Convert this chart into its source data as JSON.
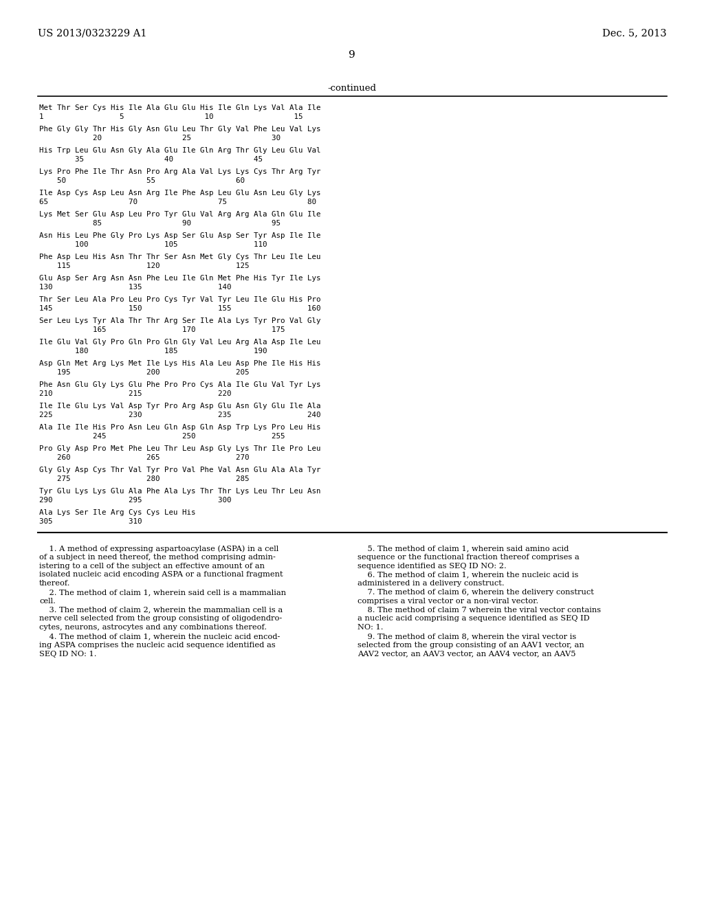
{
  "header_left": "US 2013/0323229 A1",
  "header_right": "Dec. 5, 2013",
  "page_number": "9",
  "continued_label": "-continued",
  "background_color": "#ffffff",
  "text_color": "#000000",
  "sequence_lines_exact": [
    "Met Thr Ser Cys His Ile Ala Glu Glu His Ile Gln Lys Val Ala Ile",
    "1                 5                  10                  15",
    "",
    "Phe Gly Gly Thr His Gly Asn Glu Leu Thr Gly Val Phe Leu Val Lys",
    "            20                  25                  30",
    "",
    "His Trp Leu Glu Asn Gly Ala Glu Ile Gln Arg Thr Gly Leu Glu Val",
    "        35                  40                  45",
    "",
    "Lys Pro Phe Ile Thr Asn Pro Arg Ala Val Lys Lys Cys Thr Arg Tyr",
    "    50                  55                  60",
    "",
    "Ile Asp Cys Asp Leu Asn Arg Ile Phe Asp Leu Glu Asn Leu Gly Lys",
    "65                  70                  75                  80",
    "",
    "Lys Met Ser Glu Asp Leu Pro Tyr Glu Val Arg Arg Ala Gln Glu Ile",
    "            85                  90                  95",
    "",
    "Asn His Leu Phe Gly Pro Lys Asp Ser Glu Asp Ser Tyr Asp Ile Ile",
    "        100                 105                 110",
    "",
    "Phe Asp Leu His Asn Thr Thr Ser Asn Met Gly Cys Thr Leu Ile Leu",
    "    115                 120                 125",
    "",
    "Glu Asp Ser Arg Asn Asn Phe Leu Ile Gln Met Phe His Tyr Ile Lys",
    "130                 135                 140",
    "",
    "Thr Ser Leu Ala Pro Leu Pro Cys Tyr Val Tyr Leu Ile Glu His Pro",
    "145                 150                 155                 160",
    "",
    "Ser Leu Lys Tyr Ala Thr Thr Arg Ser Ile Ala Lys Tyr Pro Val Gly",
    "            165                 170                 175",
    "",
    "Ile Glu Val Gly Pro Gln Pro Gln Gly Val Leu Arg Ala Asp Ile Leu",
    "        180                 185                 190",
    "",
    "Asp Gln Met Arg Lys Met Ile Lys His Ala Leu Asp Phe Ile His His",
    "    195                 200                 205",
    "",
    "Phe Asn Glu Gly Lys Glu Phe Pro Pro Cys Ala Ile Glu Val Tyr Lys",
    "210                 215                 220",
    "",
    "Ile Ile Glu Lys Val Asp Tyr Pro Arg Asp Glu Asn Gly Glu Ile Ala",
    "225                 230                 235                 240",
    "",
    "Ala Ile Ile His Pro Asn Leu Gln Asp Gln Asp Trp Lys Pro Leu His",
    "            245                 250                 255",
    "",
    "Pro Gly Asp Pro Met Phe Leu Thr Leu Asp Gly Lys Thr Ile Pro Leu",
    "    260                 265                 270",
    "",
    "Gly Gly Asp Cys Thr Val Tyr Pro Val Phe Val Asn Glu Ala Ala Tyr",
    "    275                 280                 285",
    "",
    "Tyr Glu Lys Lys Glu Ala Phe Ala Lys Thr Thr Lys Leu Thr Leu Asn",
    "290                 295                 300",
    "",
    "Ala Lys Ser Ile Arg Cys Cys Leu His",
    "305                 310"
  ],
  "claims_text_left": [
    "    1. A method of expressing aspartoacylase (ASPA) in a cell",
    "of a subject in need thereof, the method comprising admin-",
    "istering to a cell of the subject an effective amount of an",
    "isolated nucleic acid encoding ASPA or a functional fragment",
    "thereof.",
    "    2. The method of claim 1, wherein said cell is a mammalian",
    "cell.",
    "    3. The method of claim 2, wherein the mammalian cell is a",
    "nerve cell selected from the group consisting of oligodendro-",
    "cytes, neurons, astrocytes and any combinations thereof.",
    "    4. The method of claim 1, wherein the nucleic acid encod-",
    "ing ASPA comprises the nucleic acid sequence identified as",
    "SEQ ID NO: 1."
  ],
  "claims_text_right": [
    "    5. The method of claim 1, wherein said amino acid",
    "sequence or the functional fraction thereof comprises a",
    "sequence identified as SEQ ID NO: 2.",
    "    6. The method of claim 1, wherein the nucleic acid is",
    "administered in a delivery construct.",
    "    7. The method of claim 6, wherein the delivery construct",
    "comprises a viral vector or a non-viral vector.",
    "    8. The method of claim 7 wherein the viral vector contains",
    "a nucleic acid comprising a sequence identified as SEQ ID",
    "NO: 1.",
    "    9. The method of claim 8, wherein the viral vector is",
    "selected from the group consisting of an AAV1 vector, an",
    "AAV2 vector, an AAV3 vector, an AAV4 vector, an AAV5"
  ]
}
